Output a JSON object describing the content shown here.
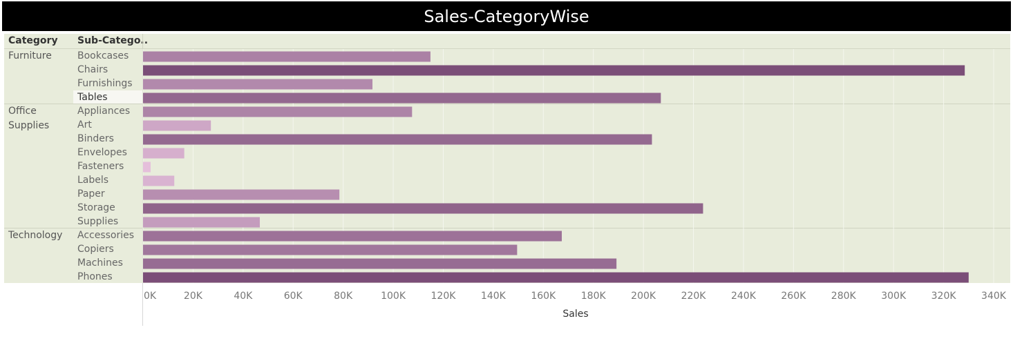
{
  "title": "Sales-CategoryWise",
  "headers": {
    "category": "Category",
    "subcategory": "Sub-Catego.."
  },
  "groups": [
    {
      "name": "Furniture",
      "lines": [
        "Furniture"
      ],
      "items": [
        "Bookcases",
        "Chairs",
        "Furnishings",
        "Tables"
      ]
    },
    {
      "name": "Office Supplies",
      "lines": [
        "Office",
        "Supplies"
      ],
      "items": [
        "Appliances",
        "Art",
        "Binders",
        "Envelopes",
        "Fasteners",
        "Labels",
        "Paper",
        "Storage",
        "Supplies"
      ]
    },
    {
      "name": "Technology",
      "lines": [
        "Technology"
      ],
      "items": [
        "Accessories",
        "Copiers",
        "Machines",
        "Phones"
      ]
    }
  ],
  "selected_row": "Tables",
  "colors": {
    "bar_low": "#f0cbe6",
    "bar_high": "#7b4e78",
    "background": "#e8ecdb",
    "title_bg": "#000000"
  },
  "chart_data": {
    "type": "bar",
    "orientation": "horizontal",
    "title": "Sales-CategoryWise",
    "xlabel": "Sales",
    "ylabel": "",
    "xlim": [
      0,
      340000
    ],
    "xticks": [
      "0K",
      "20K",
      "40K",
      "60K",
      "80K",
      "100K",
      "120K",
      "140K",
      "160K",
      "180K",
      "200K",
      "220K",
      "240K",
      "260K",
      "280K",
      "300K",
      "320K",
      "340K"
    ],
    "categories": [
      "Bookcases",
      "Chairs",
      "Furnishings",
      "Tables",
      "Appliances",
      "Art",
      "Binders",
      "Envelopes",
      "Fasteners",
      "Labels",
      "Paper",
      "Storage",
      "Supplies",
      "Accessories",
      "Copiers",
      "Machines",
      "Phones"
    ],
    "values": [
      114880,
      328449,
      91705,
      206966,
      107532,
      27119,
      203413,
      16476,
      3024,
      12486,
      78479,
      223844,
      46674,
      167380,
      149528,
      189239,
      330007
    ],
    "grid": true,
    "legend": "none"
  }
}
